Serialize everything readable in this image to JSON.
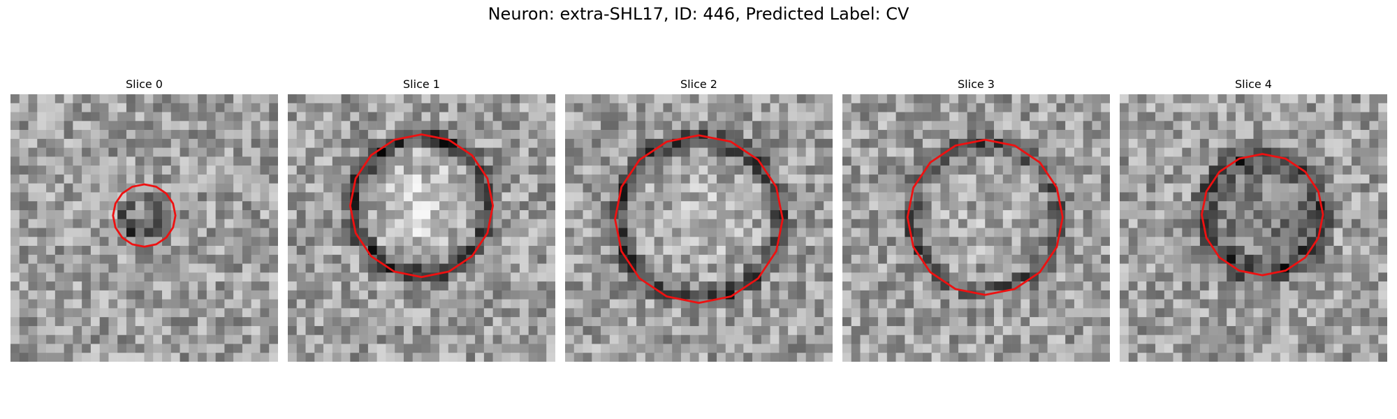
{
  "figure": {
    "title": "Neuron: extra-SHL17, ID: 446, Predicted Label: CV",
    "contour_color": "#ee1111",
    "colormap": "gray"
  },
  "panels": [
    {
      "title": "Slice 0"
    },
    {
      "title": "Slice 1"
    },
    {
      "title": "Slice 2"
    },
    {
      "title": "Slice 3"
    },
    {
      "title": "Slice 4"
    }
  ]
}
